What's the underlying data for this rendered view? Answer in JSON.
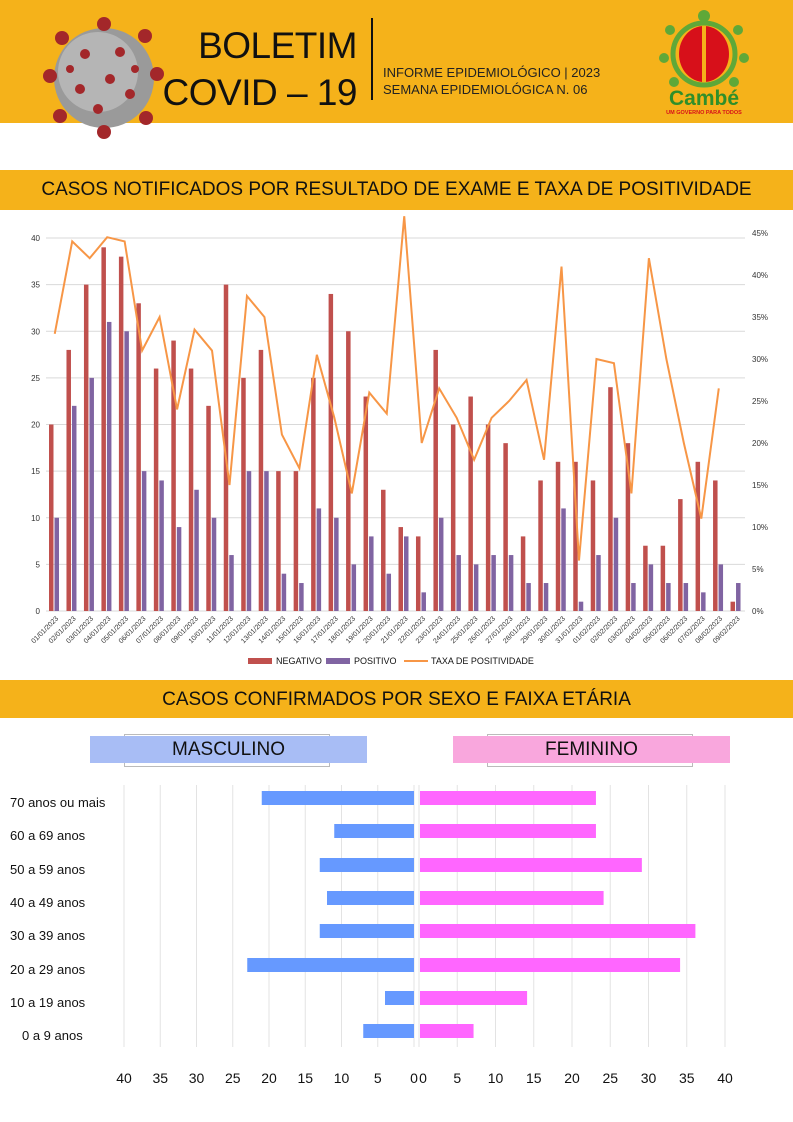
{
  "header": {
    "title_line1": "BOLETIM",
    "title_line2": "COVID – 19",
    "subtitle_line1": "INFORME EPIDEMIOLÓGICO | 2023",
    "subtitle_line2": "SEMANA EPIDEMIOLÓGICA  N. 06",
    "logo_name": "Cambé",
    "logo_tagline": "UM GOVERNO PARA TODOS"
  },
  "colors": {
    "accent": "#F5B21A",
    "negativo": "#C0504D",
    "positivo": "#8064A2",
    "taxa": "#F79646",
    "masculino": "#6699FF",
    "feminino": "#FF66FF"
  },
  "sections": {
    "chart1_title": "CASOS NOTIFICADOS POR RESULTADO DE EXAME E TAXA DE POSITIVIDADE",
    "chart2_title": "CASOS CONFIRMADOS POR SEXO E FAIXA ETÁRIA",
    "masculino": "MASCULINO",
    "feminino": "FEMININO"
  },
  "chart_data": [
    {
      "type": "bar",
      "title": "CASOS NOTIFICADOS POR RESULTADO DE EXAME E TAXA DE POSITIVIDADE",
      "categories": [
        "01/01/2023",
        "02/01/2023",
        "03/01/2023",
        "04/01/2023",
        "05/01/2023",
        "06/01/2023",
        "07/01/2023",
        "08/01/2023",
        "09/01/2023",
        "10/01/2023",
        "11/01/2023",
        "12/01/2023",
        "13/01/2023",
        "14/01/2023",
        "15/01/2023",
        "16/01/2023",
        "17/01/2023",
        "18/01/2023",
        "19/01/2023",
        "20/01/2023",
        "21/01/2023",
        "22/01/2023",
        "23/01/2023",
        "24/01/2023",
        "25/01/2023",
        "26/01/2023",
        "27/01/2023",
        "28/01/2023",
        "29/01/2023",
        "30/01/2023",
        "31/01/2023",
        "01/02/2023",
        "02/02/2023",
        "03/02/2023",
        "04/02/2023",
        "05/02/2023",
        "06/02/2023",
        "07/02/2023",
        "08/02/2023",
        "09/02/2023"
      ],
      "series": [
        {
          "name": "NEGATIVO",
          "type": "bar",
          "axis": "left",
          "values": [
            20,
            28,
            35,
            39,
            38,
            33,
            26,
            29,
            26,
            22,
            35,
            25,
            28,
            15,
            15,
            25,
            34,
            30,
            23,
            13,
            9,
            8,
            28,
            20,
            23,
            20,
            18,
            8,
            14,
            16,
            16,
            14,
            24,
            18,
            7,
            7,
            12,
            16,
            14,
            1
          ]
        },
        {
          "name": "POSITIVO",
          "type": "bar",
          "axis": "left",
          "values": [
            10,
            22,
            25,
            31,
            30,
            15,
            14,
            9,
            13,
            10,
            6,
            15,
            15,
            4,
            3,
            11,
            10,
            5,
            8,
            4,
            8,
            2,
            10,
            6,
            5,
            6,
            6,
            3,
            3,
            11,
            1,
            6,
            10,
            3,
            5,
            3,
            3,
            2,
            5,
            3
          ]
        },
        {
          "name": "TAXA DE POSITIVIDADE",
          "type": "line",
          "axis": "right",
          "unit": "%",
          "values": [
            33,
            44,
            42,
            44.5,
            44,
            31,
            35,
            24,
            33.5,
            31,
            15,
            37.5,
            35,
            21,
            17,
            30.5,
            23,
            14,
            26,
            23.5,
            47,
            20,
            26.5,
            23,
            18,
            23,
            25,
            27.5,
            18,
            41,
            6,
            30,
            29.5,
            14,
            42,
            30,
            20,
            11,
            26.5,
            null
          ]
        }
      ],
      "ylim": [
        0,
        40
      ],
      "yticks": [
        0,
        5,
        10,
        15,
        20,
        25,
        30,
        35,
        40
      ],
      "y2lim": [
        0,
        45
      ],
      "y2ticks": [
        "0%",
        "5%",
        "10%",
        "15%",
        "20%",
        "25%",
        "30%",
        "35%",
        "40%",
        "45%"
      ],
      "grid": true,
      "legend": "bottom"
    },
    {
      "type": "bar",
      "orientation": "horizontal-pyramid",
      "title": "CASOS CONFIRMADOS POR SEXO E FAIXA ETÁRIA",
      "categories": [
        "70 anos ou mais",
        "60 a 69 anos",
        "50 a 59 anos",
        "40 a 49 anos",
        "30 a 39 anos",
        "20 a 29 anos",
        "10 a 19 anos",
        "0 a 9 anos"
      ],
      "series": [
        {
          "name": "MASCULINO",
          "values": [
            21,
            11,
            13,
            12,
            13,
            23,
            4,
            7
          ]
        },
        {
          "name": "FEMININO",
          "values": [
            23,
            23,
            29,
            24,
            36,
            34,
            14,
            7
          ]
        }
      ],
      "xlim": [
        0,
        40
      ],
      "xticks_left": [
        "40",
        "35",
        "30",
        "25",
        "20",
        "15",
        "10",
        "5",
        "0"
      ],
      "xticks_right": [
        "0",
        "5",
        "10",
        "15",
        "20",
        "25",
        "30",
        "35",
        "40"
      ],
      "grid": true
    }
  ]
}
